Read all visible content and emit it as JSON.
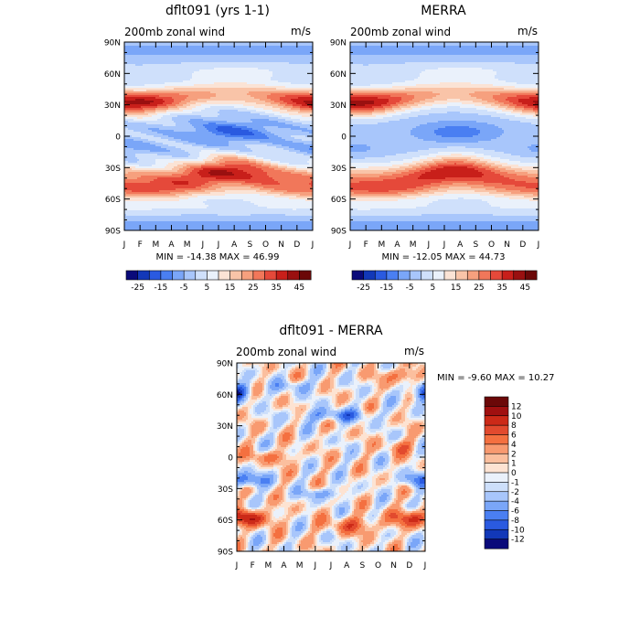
{
  "panels": [
    {
      "title": "dflt091 (yrs 1-1)",
      "subtitle": "200mb zonal wind",
      "units": "m/s",
      "stats": "MIN = -14.38 MAX =  46.99"
    },
    {
      "title": "MERRA",
      "subtitle": "200mb zonal wind",
      "units": "m/s",
      "stats": "MIN = -12.05 MAX =  44.73"
    },
    {
      "title": "dflt091 - MERRA",
      "subtitle": "200mb zonal wind",
      "units": "m/s",
      "stats": "MIN =  -9.60 MAX =  10.27"
    }
  ],
  "chart_data": [
    {
      "type": "heatmap",
      "title": "dflt091 (yrs 1-1)",
      "subtitle": "200mb zonal wind",
      "units": "m/s",
      "x_ticks": [
        "J",
        "F",
        "M",
        "A",
        "M",
        "J",
        "J",
        "A",
        "S",
        "O",
        "N",
        "D",
        "J"
      ],
      "y_ticks": [
        "90N",
        "60N",
        "30N",
        "0",
        "30S",
        "60S",
        "90S"
      ],
      "min": -14.38,
      "max": 46.99,
      "colorbar_ticks": [
        "-25",
        "-15",
        "-5",
        "5",
        "15",
        "25",
        "35",
        "45"
      ],
      "features": [
        {
          "lat": 32,
          "month": 0.5,
          "value": 45
        },
        {
          "lat": 30,
          "month": 11.6,
          "value": 40
        },
        {
          "lat": -30,
          "month": 6.5,
          "value": 45
        },
        {
          "lat": -45,
          "month": 2,
          "value": 35
        },
        {
          "lat": 5,
          "month": 6.5,
          "value": -10
        },
        {
          "lat": -14,
          "month": 0.5,
          "value": -5
        }
      ]
    },
    {
      "type": "heatmap",
      "title": "MERRA",
      "subtitle": "200mb zonal wind",
      "units": "m/s",
      "x_ticks": [
        "J",
        "F",
        "M",
        "A",
        "M",
        "J",
        "J",
        "A",
        "S",
        "O",
        "N",
        "D",
        "J"
      ],
      "y_ticks": [
        "90N",
        "60N",
        "30N",
        "0",
        "30S",
        "60S",
        "90S"
      ],
      "min": -12.05,
      "max": 44.73,
      "colorbar_ticks": [
        "-25",
        "-15",
        "-5",
        "5",
        "15",
        "25",
        "35",
        "45"
      ],
      "features": [
        {
          "lat": 32,
          "month": 0.5,
          "value": 40
        },
        {
          "lat": 30,
          "month": 11.6,
          "value": 38
        },
        {
          "lat": -30,
          "month": 6.5,
          "value": 40
        },
        {
          "lat": -45,
          "month": 2,
          "value": 32
        },
        {
          "lat": 5,
          "month": 6.5,
          "value": -8
        }
      ]
    },
    {
      "type": "heatmap",
      "title": "dflt091 - MERRA",
      "subtitle": "200mb zonal wind",
      "units": "m/s",
      "x_ticks": [
        "J",
        "F",
        "M",
        "A",
        "M",
        "J",
        "J",
        "A",
        "S",
        "O",
        "N",
        "D",
        "J"
      ],
      "y_ticks": [
        "90N",
        "60N",
        "30N",
        "0",
        "30S",
        "60S",
        "90S"
      ],
      "min": -9.6,
      "max": 10.27,
      "colorbar_ticks": [
        "12",
        "10",
        "8",
        "6",
        "4",
        "2",
        "1",
        "0",
        "-1",
        "-2",
        "-4",
        "-6",
        "-8",
        "-10",
        "-12"
      ],
      "features": [
        {
          "lat": 62,
          "month": 0.2,
          "value": -8
        },
        {
          "lat": 62,
          "month": 11.8,
          "value": -8
        },
        {
          "lat": -22,
          "month": 0.6,
          "value": -8
        },
        {
          "lat": -22,
          "month": 11.5,
          "value": -6
        },
        {
          "lat": 40,
          "month": 6.3,
          "value": -6
        },
        {
          "lat": -58,
          "month": 0.8,
          "value": 10
        },
        {
          "lat": -58,
          "month": 11.3,
          "value": 8
        },
        {
          "lat": 0,
          "month": 2.3,
          "value": 4
        },
        {
          "lat": 78,
          "month": 10.5,
          "value": 6
        }
      ]
    }
  ],
  "colors": {
    "wind_scale": [
      "#0a0a7a",
      "#1238b8",
      "#2a5ae0",
      "#4a7ff2",
      "#7aa6f8",
      "#a8c6fb",
      "#cfe0fb",
      "#eaf1fb",
      "#fbe3d5",
      "#f9c4a8",
      "#f6a07e",
      "#f1775a",
      "#e5493a",
      "#c81f1a",
      "#9a1010",
      "#6b0808"
    ],
    "diff_scale": [
      "#6b0808",
      "#a01010",
      "#cc2a18",
      "#e24a2e",
      "#f47040",
      "#f89a70",
      "#fbbf9e",
      "#fde3d2",
      "#eaf1fb",
      "#cddffa",
      "#a8c6fb",
      "#7aa6f8",
      "#4a7ff2",
      "#2a5ae0",
      "#1238b8",
      "#0a0a7a"
    ]
  }
}
